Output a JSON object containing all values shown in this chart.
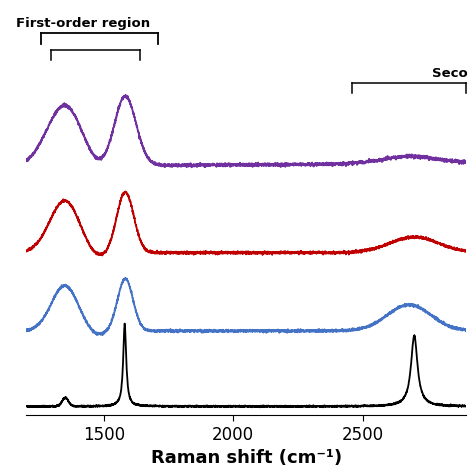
{
  "title": "",
  "xlabel": "Raman shift (cm⁻¹)",
  "xlim": [
    1200,
    2900
  ],
  "ylim": [
    -0.1,
    4.6
  ],
  "xticks": [
    1500,
    2000,
    2500
  ],
  "background_color": "#ffffff",
  "first_order_label": "First-order region",
  "second_order_label": "Seco",
  "line_colors": [
    "#000000",
    "#4472c4",
    "#c00000",
    "#7030a0"
  ],
  "offsets": [
    0.0,
    0.85,
    1.75,
    2.75
  ],
  "noise_level": 0.02
}
